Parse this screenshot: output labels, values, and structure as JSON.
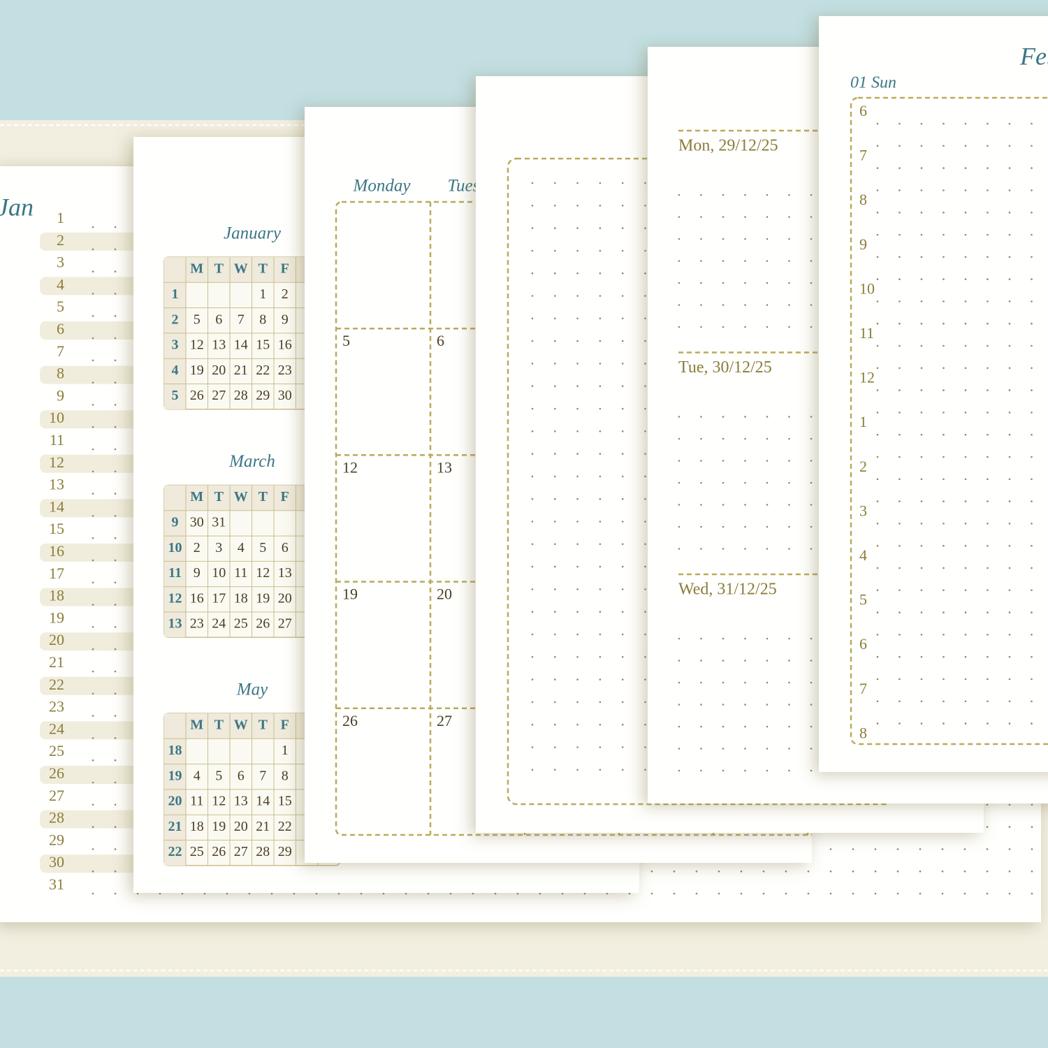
{
  "daily_list": {
    "month": "Jan",
    "days": [
      "1",
      "2",
      "3",
      "4",
      "5",
      "6",
      "7",
      "8",
      "9",
      "10",
      "11",
      "12",
      "13",
      "14",
      "15",
      "16",
      "17",
      "18",
      "19",
      "20",
      "21",
      "22",
      "23",
      "24",
      "25",
      "26",
      "27",
      "28",
      "29",
      "30",
      "31"
    ]
  },
  "calendars": [
    {
      "title": "January",
      "weekdays": [
        "M",
        "T",
        "W",
        "T",
        "F"
      ],
      "rows": [
        {
          "week": "1",
          "days": [
            null,
            null,
            null,
            "1",
            "2"
          ]
        },
        {
          "week": "2",
          "days": [
            "5",
            "6",
            "7",
            "8",
            "9"
          ]
        },
        {
          "week": "3",
          "days": [
            "12",
            "13",
            "14",
            "15",
            "16"
          ]
        },
        {
          "week": "4",
          "days": [
            "19",
            "20",
            "21",
            "22",
            "23"
          ]
        },
        {
          "week": "5",
          "days": [
            "26",
            "27",
            "28",
            "29",
            "30"
          ]
        }
      ]
    },
    {
      "title": "March",
      "weekdays": [
        "M",
        "T",
        "W",
        "T",
        "F"
      ],
      "rows": [
        {
          "week": "9",
          "days": [
            "30",
            "31",
            null,
            null,
            null
          ]
        },
        {
          "week": "10",
          "days": [
            "2",
            "3",
            "4",
            "5",
            "6"
          ]
        },
        {
          "week": "11",
          "days": [
            "9",
            "10",
            "11",
            "12",
            "13"
          ]
        },
        {
          "week": "12",
          "days": [
            "16",
            "17",
            "18",
            "19",
            "20"
          ]
        },
        {
          "week": "13",
          "days": [
            "23",
            "24",
            "25",
            "26",
            "27"
          ]
        }
      ]
    },
    {
      "title": "May",
      "weekdays": [
        "M",
        "T",
        "W",
        "T",
        "F"
      ],
      "rows": [
        {
          "week": "18",
          "days": [
            null,
            null,
            null,
            null,
            "1"
          ]
        },
        {
          "week": "19",
          "days": [
            "4",
            "5",
            "6",
            "7",
            "8"
          ]
        },
        {
          "week": "20",
          "days": [
            "11",
            "12",
            "13",
            "14",
            "15"
          ]
        },
        {
          "week": "21",
          "days": [
            "18",
            "19",
            "20",
            "21",
            "22"
          ]
        },
        {
          "week": "22",
          "days": [
            "25",
            "26",
            "27",
            "28",
            "29"
          ]
        }
      ]
    }
  ],
  "month_grid": {
    "headers": [
      "Monday",
      "Tuesday"
    ],
    "rows": [
      [
        null,
        null
      ],
      [
        "5",
        "6"
      ],
      [
        "12",
        "13"
      ],
      [
        "19",
        "20"
      ],
      [
        "26",
        "27"
      ]
    ]
  },
  "weekly": {
    "days": [
      "Mon, 29/12/25",
      "Tue, 30/12/25",
      "Wed, 31/12/25"
    ]
  },
  "daily": {
    "month": "Feb",
    "day": "01 Sun",
    "hours": [
      "6",
      "7",
      "8",
      "9",
      "10",
      "11",
      "12",
      "1",
      "2",
      "3",
      "4",
      "5",
      "6",
      "7",
      "8"
    ]
  }
}
